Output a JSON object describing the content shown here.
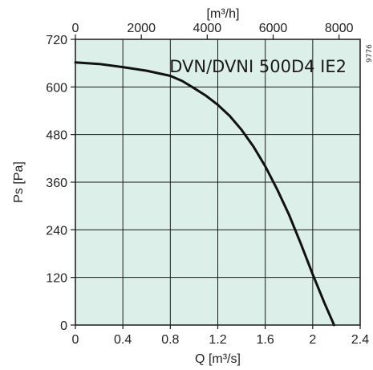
{
  "chart_data": {
    "type": "line",
    "title": "DVN/DVNI 500D4 IE2",
    "corner_code": "9776",
    "xlabel": "Q [m³/s]",
    "ylabel": "Ps [Pa]",
    "x2label": "[m³/h]",
    "xlim": [
      0,
      2.4
    ],
    "ylim": [
      0,
      720
    ],
    "x2lim": [
      0,
      8640
    ],
    "x_ticks": [
      0,
      0.4,
      0.8,
      1.2,
      1.6,
      2,
      2.4
    ],
    "x_tick_labels": [
      "0",
      "0.4",
      "0.8",
      "1.2",
      "1.6",
      "2",
      "2.4"
    ],
    "y_ticks": [
      0,
      120,
      240,
      360,
      480,
      600,
      720
    ],
    "y_tick_labels": [
      "0",
      "120",
      "240",
      "360",
      "480",
      "600",
      "720"
    ],
    "x2_ticks": [
      0,
      2000,
      4000,
      6000,
      8000
    ],
    "x2_tick_labels": [
      "0",
      "2000",
      "4000",
      "6000",
      "8000"
    ],
    "grid": true,
    "colors": {
      "plot_bg": "#dcefe8",
      "grid": "#1a1a1a",
      "curve": "#111111"
    },
    "series": [
      {
        "x": [
          0,
          0.2,
          0.4,
          0.6,
          0.8,
          0.9,
          1.0,
          1.1,
          1.2,
          1.3,
          1.4,
          1.5,
          1.6,
          1.7,
          1.8,
          1.9,
          2.0,
          2.1,
          2.18
        ],
        "y": [
          662,
          658,
          650,
          641,
          628,
          615,
          597,
          578,
          555,
          527,
          492,
          450,
          400,
          342,
          278,
          205,
          128,
          55,
          0
        ]
      }
    ]
  }
}
